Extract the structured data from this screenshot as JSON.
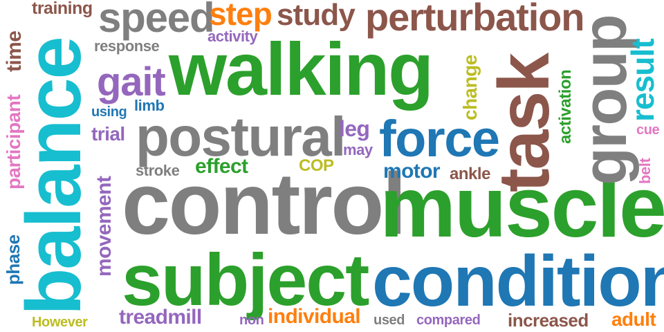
{
  "palette": {
    "cyan": "#17becf",
    "green": "#2ca02c",
    "gray": "#7f7f7f",
    "blue": "#1f77b4",
    "brown": "#8c564b",
    "purple": "#9467bd",
    "pink": "#e377c2",
    "orange": "#ff7f0e",
    "olive": "#bcbd22"
  },
  "words": {
    "balance": "balance",
    "walking": "walking",
    "control": "control",
    "muscle": "muscle",
    "subject": "subject",
    "condition": "condition",
    "task": "task",
    "group": "group",
    "postural": "postural",
    "force": "force",
    "speed": "speed",
    "step": "step",
    "study": "study",
    "perturbation": "perturbation",
    "gait": "gait",
    "training": "training",
    "time": "time",
    "participant": "participant",
    "response": "response",
    "activity": "activity",
    "using": "using",
    "limb": "limb",
    "trial": "trial",
    "change": "change",
    "leg": "leg",
    "may": "may",
    "motor": "motor",
    "ankle": "ankle",
    "effect": "effect",
    "stroke": "stroke",
    "cop": "COP",
    "activation": "activation",
    "result": "result",
    "cue": "cue",
    "belt": "belt",
    "movement": "movement",
    "phase": "phase",
    "however": "However",
    "treadmill": "treadmill",
    "non": "non",
    "individual": "individual",
    "used": "used",
    "compared": "compared",
    "increased": "increased",
    "adult": "adult"
  }
}
